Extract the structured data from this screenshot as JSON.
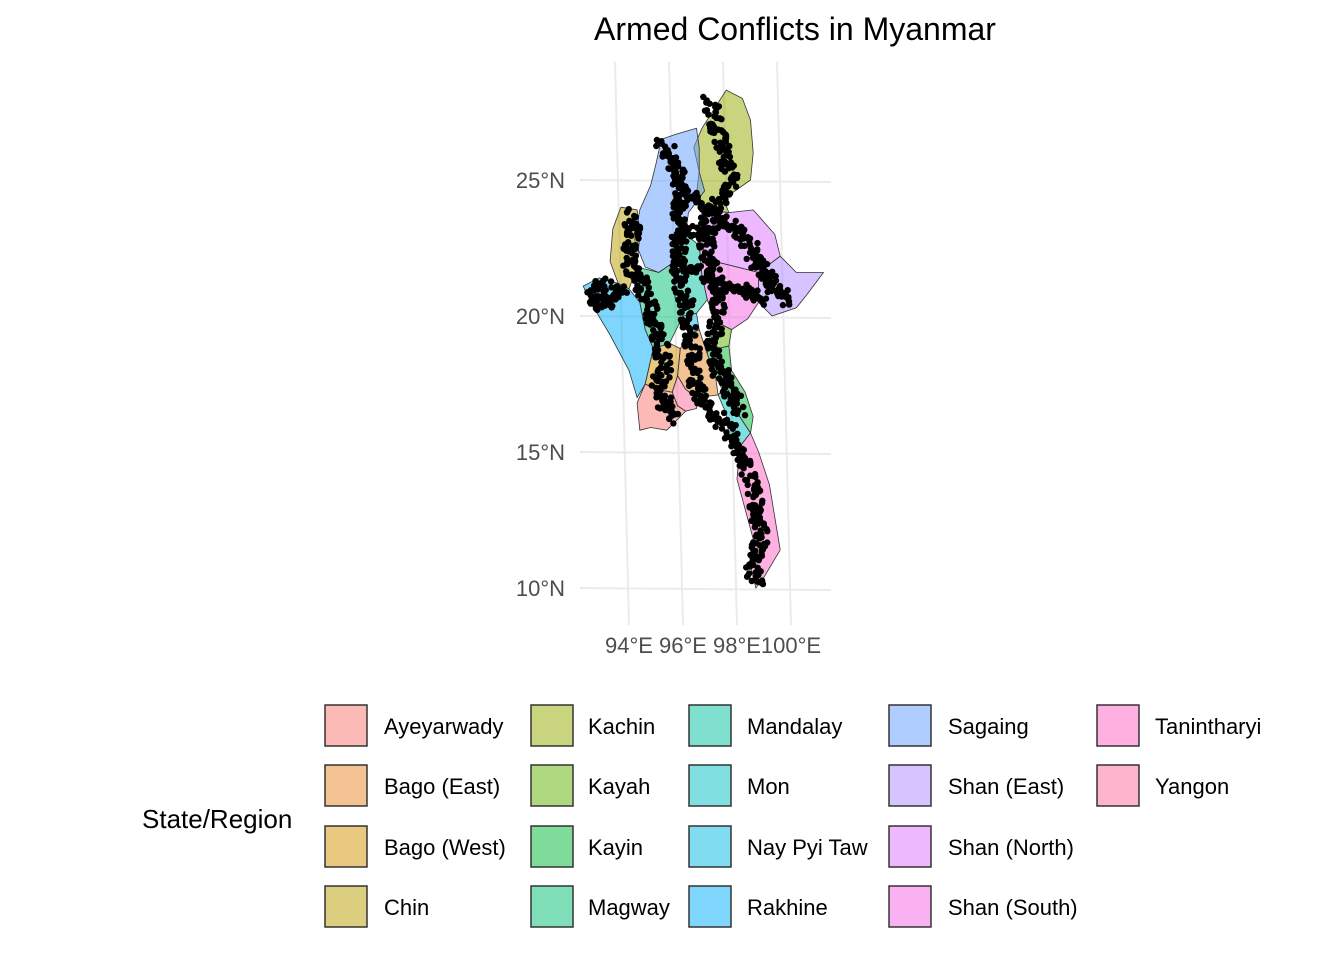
{
  "chart_data": {
    "type": "map",
    "title": "Armed Conflicts in Myanmar",
    "x_axis": {
      "ticks": [
        {
          "value": 94,
          "label": "94°E"
        },
        {
          "value": 96,
          "label": "96°E"
        },
        {
          "value": 98,
          "label": "98°E"
        },
        {
          "value": 100,
          "label": "100°E"
        }
      ]
    },
    "y_axis": {
      "ticks": [
        {
          "value": 10,
          "label": "10°N"
        },
        {
          "value": 15,
          "label": "15°N"
        },
        {
          "value": 20,
          "label": "20°N"
        },
        {
          "value": 25,
          "label": "25°N"
        }
      ]
    },
    "grid": true,
    "legend": {
      "title": "State/Region",
      "position": "bottom",
      "entries": [
        {
          "label": "Ayeyarwady",
          "color": "#F8766D"
        },
        {
          "label": "Bago (East)",
          "color": "#E88526"
        },
        {
          "label": "Bago (West)",
          "color": "#D39200"
        },
        {
          "label": "Chin",
          "color": "#B79F00"
        },
        {
          "label": "Kachin",
          "color": "#93AA00"
        },
        {
          "label": "Kayah",
          "color": "#5EB300"
        },
        {
          "label": "Kayin",
          "color": "#00BA38"
        },
        {
          "label": "Magway",
          "color": "#00BF74"
        },
        {
          "label": "Mandalay",
          "color": "#00C19F"
        },
        {
          "label": "Mon",
          "color": "#00BFC4"
        },
        {
          "label": "Nay Pyi Taw",
          "color": "#00B9E3"
        },
        {
          "label": "Rakhine",
          "color": "#00ADFA"
        },
        {
          "label": "Sagaing",
          "color": "#619CFF"
        },
        {
          "label": "Shan (East)",
          "color": "#AE87FF"
        },
        {
          "label": "Shan (North)",
          "color": "#DB72FB"
        },
        {
          "label": "Shan (South)",
          "color": "#F564E3"
        },
        {
          "label": "Tanintharyi",
          "color": "#FF61C3"
        },
        {
          "label": "Yangon",
          "color": "#FF699C"
        }
      ]
    },
    "regions": [
      {
        "name": "Kachin",
        "color": "#93AA00",
        "polygon": [
          [
            96.6,
            25.3
          ],
          [
            96.4,
            26.2
          ],
          [
            96.7,
            26.9
          ],
          [
            97.6,
            28.3
          ],
          [
            98.2,
            28.0
          ],
          [
            98.5,
            27.2
          ],
          [
            98.6,
            26.0
          ],
          [
            98.5,
            25.0
          ],
          [
            97.5,
            24.3
          ],
          [
            97.7,
            23.8
          ],
          [
            96.9,
            23.9
          ],
          [
            96.5,
            24.5
          ]
        ]
      },
      {
        "name": "Sagaing",
        "color": "#619CFF",
        "polygon": [
          [
            95.2,
            26.5
          ],
          [
            95.8,
            26.7
          ],
          [
            96.5,
            26.9
          ],
          [
            96.6,
            26.2
          ],
          [
            96.6,
            25.3
          ],
          [
            96.8,
            24.6
          ],
          [
            96.2,
            23.8
          ],
          [
            96.1,
            23.0
          ],
          [
            95.7,
            22.0
          ],
          [
            95.1,
            21.6
          ],
          [
            94.6,
            21.8
          ],
          [
            94.2,
            22.8
          ],
          [
            94.4,
            23.9
          ],
          [
            94.8,
            24.8
          ],
          [
            95.0,
            25.6
          ]
        ]
      },
      {
        "name": "Chin",
        "color": "#B79F00",
        "polygon": [
          [
            93.7,
            24.0
          ],
          [
            94.3,
            23.9
          ],
          [
            94.4,
            23.0
          ],
          [
            94.3,
            21.8
          ],
          [
            94.0,
            21.0
          ],
          [
            93.6,
            21.2
          ],
          [
            93.3,
            22.0
          ],
          [
            93.4,
            23.2
          ]
        ]
      },
      {
        "name": "Shan (North)",
        "color": "#DB72FB",
        "polygon": [
          [
            96.9,
            23.9
          ],
          [
            97.7,
            23.8
          ],
          [
            98.6,
            23.9
          ],
          [
            99.4,
            23.0
          ],
          [
            99.6,
            22.2
          ],
          [
            98.8,
            21.6
          ],
          [
            98.0,
            21.8
          ],
          [
            97.2,
            22.0
          ],
          [
            96.6,
            22.6
          ]
        ]
      },
      {
        "name": "Shan (East)",
        "color": "#AE87FF",
        "polygon": [
          [
            98.8,
            21.6
          ],
          [
            99.6,
            22.2
          ],
          [
            100.2,
            21.6
          ],
          [
            101.2,
            21.6
          ],
          [
            100.6,
            20.8
          ],
          [
            100.2,
            20.3
          ],
          [
            99.3,
            20.0
          ],
          [
            98.8,
            20.5
          ]
        ]
      },
      {
        "name": "Shan (South)",
        "color": "#F564E3",
        "polygon": [
          [
            96.6,
            22.6
          ],
          [
            97.2,
            22.0
          ],
          [
            98.0,
            21.8
          ],
          [
            98.8,
            21.6
          ],
          [
            98.8,
            20.5
          ],
          [
            98.4,
            19.9
          ],
          [
            97.8,
            19.5
          ],
          [
            97.2,
            19.8
          ],
          [
            96.9,
            20.6
          ],
          [
            96.7,
            21.5
          ]
        ]
      },
      {
        "name": "Kayah",
        "color": "#5EB300",
        "polygon": [
          [
            97.2,
            19.8
          ],
          [
            97.8,
            19.5
          ],
          [
            97.7,
            18.9
          ],
          [
            97.3,
            18.8
          ],
          [
            97.0,
            19.3
          ]
        ]
      },
      {
        "name": "Kayin",
        "color": "#00BA38",
        "polygon": [
          [
            97.0,
            19.3
          ],
          [
            97.3,
            18.8
          ],
          [
            97.7,
            18.9
          ],
          [
            97.8,
            18.0
          ],
          [
            98.3,
            17.2
          ],
          [
            98.6,
            16.3
          ],
          [
            98.5,
            15.7
          ],
          [
            98.1,
            16.3
          ],
          [
            97.6,
            17.0
          ],
          [
            97.2,
            17.8
          ],
          [
            96.9,
            18.6
          ]
        ]
      },
      {
        "name": "Mon",
        "color": "#00BFC4",
        "polygon": [
          [
            97.6,
            17.4
          ],
          [
            97.9,
            16.9
          ],
          [
            98.1,
            16.3
          ],
          [
            98.5,
            15.7
          ],
          [
            98.1,
            15.2
          ],
          [
            97.7,
            15.6
          ],
          [
            97.6,
            16.4
          ],
          [
            97.3,
            17.1
          ]
        ]
      },
      {
        "name": "Tanintharyi",
        "color": "#FF61C3",
        "polygon": [
          [
            98.1,
            15.2
          ],
          [
            98.5,
            15.7
          ],
          [
            98.8,
            15.0
          ],
          [
            99.2,
            13.8
          ],
          [
            99.5,
            12.0
          ],
          [
            99.6,
            11.4
          ],
          [
            99.0,
            10.4
          ],
          [
            98.7,
            10.0
          ],
          [
            98.5,
            10.8
          ],
          [
            98.6,
            11.8
          ],
          [
            98.3,
            12.9
          ],
          [
            98.0,
            14.0
          ]
        ]
      },
      {
        "name": "Mandalay",
        "color": "#00C19F",
        "polygon": [
          [
            95.7,
            22.0
          ],
          [
            96.1,
            23.0
          ],
          [
            96.6,
            22.6
          ],
          [
            96.7,
            21.5
          ],
          [
            96.9,
            20.6
          ],
          [
            96.5,
            20.1
          ],
          [
            96.0,
            20.0
          ],
          [
            95.7,
            20.7
          ]
        ]
      },
      {
        "name": "Nay Pyi Taw",
        "color": "#00B9E3",
        "polygon": [
          [
            96.0,
            20.0
          ],
          [
            96.5,
            20.1
          ],
          [
            96.6,
            19.5
          ],
          [
            96.2,
            19.3
          ]
        ]
      },
      {
        "name": "Magway",
        "color": "#00BF74",
        "polygon": [
          [
            94.3,
            21.8
          ],
          [
            95.1,
            21.6
          ],
          [
            95.7,
            22.0
          ],
          [
            95.7,
            20.7
          ],
          [
            96.0,
            20.0
          ],
          [
            95.5,
            19.0
          ],
          [
            94.9,
            18.8
          ],
          [
            94.6,
            19.5
          ],
          [
            94.4,
            20.5
          ]
        ]
      },
      {
        "name": "Rakhine",
        "color": "#00ADFA",
        "polygon": [
          [
            92.3,
            21.1
          ],
          [
            92.9,
            21.4
          ],
          [
            93.6,
            21.2
          ],
          [
            94.0,
            21.0
          ],
          [
            94.4,
            20.5
          ],
          [
            94.6,
            19.5
          ],
          [
            94.9,
            18.8
          ],
          [
            94.6,
            17.5
          ],
          [
            94.3,
            17.0
          ],
          [
            94.0,
            18.0
          ],
          [
            93.3,
            19.3
          ],
          [
            92.7,
            20.3
          ]
        ]
      },
      {
        "name": "Bago (West)",
        "color": "#D39200",
        "polygon": [
          [
            94.9,
            18.8
          ],
          [
            95.5,
            19.0
          ],
          [
            95.9,
            18.8
          ],
          [
            95.8,
            17.8
          ],
          [
            95.6,
            17.2
          ],
          [
            95.0,
            17.3
          ],
          [
            94.6,
            17.5
          ]
        ]
      },
      {
        "name": "Bago (East)",
        "color": "#E88526",
        "polygon": [
          [
            95.9,
            18.8
          ],
          [
            96.2,
            19.3
          ],
          [
            96.6,
            19.5
          ],
          [
            96.9,
            18.6
          ],
          [
            97.2,
            17.8
          ],
          [
            97.3,
            17.1
          ],
          [
            96.5,
            17.0
          ],
          [
            96.1,
            17.3
          ],
          [
            95.8,
            17.8
          ]
        ]
      },
      {
        "name": "Yangon",
        "color": "#FF699C",
        "polygon": [
          [
            95.6,
            17.2
          ],
          [
            95.8,
            17.8
          ],
          [
            96.1,
            17.3
          ],
          [
            96.5,
            17.0
          ],
          [
            96.5,
            16.6
          ],
          [
            96.1,
            16.5
          ],
          [
            95.8,
            16.7
          ]
        ]
      },
      {
        "name": "Ayeyarwady",
        "color": "#F8766D",
        "polygon": [
          [
            94.6,
            17.5
          ],
          [
            95.0,
            17.3
          ],
          [
            95.6,
            17.2
          ],
          [
            95.8,
            16.7
          ],
          [
            96.1,
            16.5
          ],
          [
            95.4,
            15.8
          ],
          [
            94.8,
            15.9
          ],
          [
            94.4,
            15.8
          ],
          [
            94.3,
            16.8
          ]
        ]
      }
    ],
    "conflict_events_note": "dense black points",
    "conflict_tracks": [
      [
        [
          95.2,
          26.4
        ],
        [
          95.6,
          25.8
        ],
        [
          95.8,
          25.2
        ],
        [
          96.0,
          24.6
        ],
        [
          95.9,
          23.9
        ],
        [
          95.8,
          23.2
        ],
        [
          95.9,
          22.5
        ],
        [
          95.8,
          21.9
        ],
        [
          95.9,
          21.2
        ],
        [
          96.1,
          20.6
        ],
        [
          96.2,
          19.9
        ],
        [
          96.3,
          19.2
        ],
        [
          96.4,
          18.4
        ],
        [
          96.5,
          17.6
        ],
        [
          96.6,
          16.9
        ],
        [
          97.2,
          16.4
        ],
        [
          97.6,
          15.9
        ],
        [
          98.0,
          15.3
        ],
        [
          98.3,
          14.6
        ],
        [
          98.6,
          13.8
        ],
        [
          98.7,
          13.0
        ],
        [
          98.9,
          12.2
        ],
        [
          98.8,
          11.4
        ],
        [
          98.6,
          10.8
        ],
        [
          98.7,
          10.1
        ]
      ],
      [
        [
          97.0,
          27.9
        ],
        [
          97.2,
          27.1
        ],
        [
          97.4,
          26.4
        ],
        [
          97.6,
          25.7
        ],
        [
          97.8,
          25.0
        ],
        [
          97.4,
          24.3
        ],
        [
          97.0,
          23.7
        ],
        [
          96.8,
          23.0
        ],
        [
          96.9,
          22.4
        ],
        [
          97.1,
          21.8
        ],
        [
          97.3,
          21.1
        ],
        [
          97.3,
          20.4
        ],
        [
          97.2,
          19.7
        ],
        [
          97.1,
          19.0
        ],
        [
          97.2,
          18.3
        ],
        [
          97.5,
          17.7
        ],
        [
          97.8,
          17.1
        ],
        [
          98.1,
          16.5
        ]
      ],
      [
        [
          94.0,
          23.8
        ],
        [
          94.2,
          23.1
        ],
        [
          94.0,
          22.4
        ],
        [
          94.1,
          21.7
        ],
        [
          94.5,
          21.1
        ],
        [
          94.8,
          20.4
        ],
        [
          95.0,
          19.6
        ],
        [
          95.2,
          18.9
        ],
        [
          95.3,
          18.2
        ],
        [
          95.1,
          17.5
        ],
        [
          95.3,
          16.8
        ],
        [
          95.6,
          16.2
        ]
      ],
      [
        [
          93.8,
          21.0
        ],
        [
          93.3,
          20.6
        ],
        [
          92.8,
          20.4
        ],
        [
          92.7,
          20.9
        ],
        [
          93.2,
          21.2
        ]
      ],
      [
        [
          97.2,
          23.6
        ],
        [
          97.8,
          23.3
        ],
        [
          98.3,
          22.9
        ],
        [
          98.6,
          22.3
        ],
        [
          98.9,
          21.8
        ],
        [
          99.2,
          21.3
        ],
        [
          99.5,
          20.9
        ],
        [
          99.9,
          20.5
        ]
      ],
      [
        [
          96.0,
          24.6
        ],
        [
          96.6,
          24.2
        ],
        [
          97.0,
          23.7
        ]
      ],
      [
        [
          95.9,
          23.2
        ],
        [
          96.8,
          23.0
        ],
        [
          97.8,
          23.3
        ]
      ],
      [
        [
          95.8,
          21.9
        ],
        [
          96.6,
          21.6
        ],
        [
          97.3,
          21.1
        ],
        [
          98.0,
          21.1
        ],
        [
          98.5,
          20.8
        ],
        [
          99.0,
          20.5
        ]
      ]
    ]
  }
}
